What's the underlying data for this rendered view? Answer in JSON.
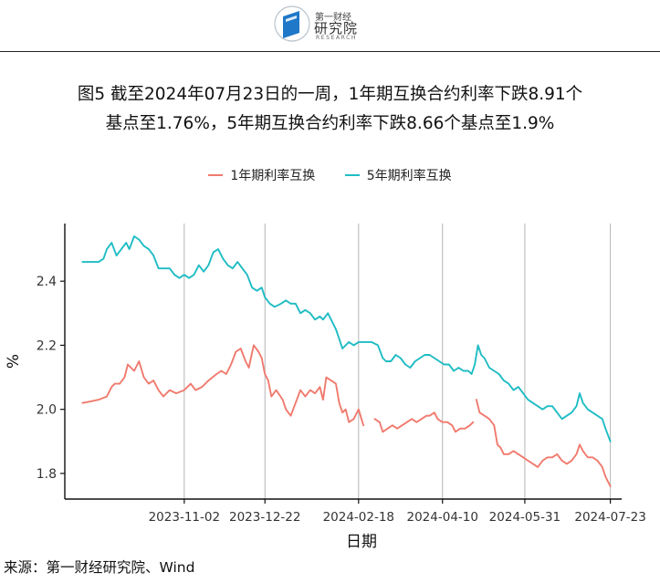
{
  "logo": {
    "top_text": "第一财经",
    "main_text": "研究院",
    "sub_text": "RESEARCH",
    "brand_color": "#1f78c8"
  },
  "title": {
    "line1": "图5  截至2024年07月23日的一周，1年期互换合约利率下跌8.91个",
    "line2": "基点至1.76%，5年期互换合约利率下跌8.66个基点至1.9%"
  },
  "source": "来源：第一财经研究院、Wind",
  "chart_data": {
    "type": "line",
    "xlabel": "日期",
    "ylabel": "%",
    "x_ticks": [
      "2023-11-02",
      "2023-12-22",
      "2024-02-18",
      "2024-04-10",
      "2024-05-31",
      "2024-07-23"
    ],
    "y_ticks": [
      1.8,
      2.0,
      2.2,
      2.4
    ],
    "ylim": [
      1.72,
      2.58
    ],
    "xlim": [
      "2023-08-20",
      "2024-07-30"
    ],
    "grid": "vertical lines at x ticks",
    "legend_position": "top-center",
    "series": [
      {
        "name": "1年期利率互换",
        "color": "#f07a6e",
        "segments": [
          [
            [
              "2023-08-31",
              2.02
            ],
            [
              "2023-09-05",
              2.025
            ],
            [
              "2023-09-10",
              2.03
            ],
            [
              "2023-09-15",
              2.04
            ],
            [
              "2023-09-18",
              2.07
            ],
            [
              "2023-09-20",
              2.08
            ],
            [
              "2023-09-23",
              2.08
            ],
            [
              "2023-09-26",
              2.1
            ],
            [
              "2023-09-28",
              2.14
            ],
            [
              "2023-10-02",
              2.12
            ],
            [
              "2023-10-05",
              2.15
            ],
            [
              "2023-10-08",
              2.1
            ],
            [
              "2023-10-11",
              2.08
            ],
            [
              "2023-10-14",
              2.09
            ],
            [
              "2023-10-17",
              2.06
            ],
            [
              "2023-10-20",
              2.04
            ],
            [
              "2023-10-24",
              2.06
            ],
            [
              "2023-10-28",
              2.05
            ],
            [
              "2023-11-02",
              2.06
            ],
            [
              "2023-11-06",
              2.08
            ],
            [
              "2023-11-09",
              2.06
            ],
            [
              "2023-11-13",
              2.07
            ],
            [
              "2023-11-17",
              2.09
            ],
            [
              "2023-11-22",
              2.11
            ],
            [
              "2023-11-25",
              2.12
            ],
            [
              "2023-11-28",
              2.11
            ],
            [
              "2023-12-01",
              2.14
            ],
            [
              "2023-12-04",
              2.18
            ],
            [
              "2023-12-07",
              2.19
            ],
            [
              "2023-12-10",
              2.15
            ],
            [
              "2023-12-12",
              2.13
            ],
            [
              "2023-12-15",
              2.2
            ],
            [
              "2023-12-18",
              2.18
            ],
            [
              "2023-12-20",
              2.16
            ],
            [
              "2023-12-22",
              2.11
            ],
            [
              "2023-12-24",
              2.09
            ],
            [
              "2023-12-26",
              2.04
            ],
            [
              "2023-12-29",
              2.06
            ],
            [
              "2024-01-02",
              2.03
            ],
            [
              "2024-01-04",
              2.0
            ],
            [
              "2024-01-07",
              1.98
            ],
            [
              "2024-01-10",
              2.02
            ],
            [
              "2024-01-13",
              2.06
            ],
            [
              "2024-01-16",
              2.04
            ],
            [
              "2024-01-19",
              2.06
            ],
            [
              "2024-01-22",
              2.05
            ],
            [
              "2024-01-25",
              2.07
            ],
            [
              "2024-01-27",
              2.03
            ],
            [
              "2024-01-29",
              2.1
            ],
            [
              "2024-02-01",
              2.09
            ],
            [
              "2024-02-04",
              2.08
            ],
            [
              "2024-02-06",
              2.02
            ],
            [
              "2024-02-08",
              1.99
            ],
            [
              "2024-02-10",
              2.0
            ],
            [
              "2024-02-12",
              1.96
            ],
            [
              "2024-02-15",
              1.97
            ],
            [
              "2024-02-18",
              2.0
            ],
            [
              "2024-02-21",
              1.95
            ]
          ],
          [
            [
              "2024-02-28",
              1.97
            ],
            [
              "2024-03-02",
              1.96
            ],
            [
              "2024-03-04",
              1.93
            ],
            [
              "2024-03-07",
              1.94
            ],
            [
              "2024-03-10",
              1.95
            ],
            [
              "2024-03-13",
              1.94
            ],
            [
              "2024-03-16",
              1.95
            ],
            [
              "2024-03-19",
              1.96
            ],
            [
              "2024-03-22",
              1.97
            ],
            [
              "2024-03-25",
              1.96
            ],
            [
              "2024-03-28",
              1.97
            ],
            [
              "2024-03-31",
              1.98
            ],
            [
              "2024-04-02",
              1.98
            ],
            [
              "2024-04-05",
              1.99
            ],
            [
              "2024-04-07",
              1.97
            ],
            [
              "2024-04-10",
              1.96
            ],
            [
              "2024-04-13",
              1.96
            ],
            [
              "2024-04-16",
              1.95
            ],
            [
              "2024-04-18",
              1.93
            ],
            [
              "2024-04-21",
              1.94
            ],
            [
              "2024-04-24",
              1.94
            ],
            [
              "2024-04-27",
              1.95
            ],
            [
              "2024-04-29",
              1.96
            ]
          ],
          [
            [
              "2024-05-01",
              2.03
            ],
            [
              "2024-05-03",
              1.99
            ],
            [
              "2024-05-06",
              1.98
            ],
            [
              "2024-05-09",
              1.97
            ],
            [
              "2024-05-12",
              1.95
            ],
            [
              "2024-05-14",
              1.89
            ],
            [
              "2024-05-16",
              1.88
            ],
            [
              "2024-05-18",
              1.86
            ],
            [
              "2024-05-21",
              1.86
            ],
            [
              "2024-05-24",
              1.87
            ],
            [
              "2024-05-27",
              1.86
            ],
            [
              "2024-05-30",
              1.85
            ],
            [
              "2024-06-02",
              1.84
            ],
            [
              "2024-06-05",
              1.83
            ],
            [
              "2024-06-08",
              1.82
            ],
            [
              "2024-06-11",
              1.84
            ],
            [
              "2024-06-14",
              1.85
            ],
            [
              "2024-06-17",
              1.85
            ],
            [
              "2024-06-20",
              1.86
            ],
            [
              "2024-06-23",
              1.84
            ],
            [
              "2024-06-26",
              1.83
            ],
            [
              "2024-06-29",
              1.84
            ],
            [
              "2024-07-02",
              1.86
            ],
            [
              "2024-07-04",
              1.89
            ],
            [
              "2024-07-06",
              1.87
            ],
            [
              "2024-07-09",
              1.85
            ],
            [
              "2024-07-12",
              1.85
            ],
            [
              "2024-07-15",
              1.84
            ],
            [
              "2024-07-18",
              1.82
            ],
            [
              "2024-07-20",
              1.79
            ],
            [
              "2024-07-23",
              1.76
            ]
          ]
        ]
      },
      {
        "name": "5年期利率互换",
        "color": "#1fbcc4",
        "segments": [
          [
            [
              "2023-08-31",
              2.46
            ],
            [
              "2023-09-05",
              2.46
            ],
            [
              "2023-09-10",
              2.46
            ],
            [
              "2023-09-13",
              2.47
            ],
            [
              "2023-09-15",
              2.5
            ],
            [
              "2023-09-18",
              2.52
            ],
            [
              "2023-09-21",
              2.48
            ],
            [
              "2023-09-24",
              2.5
            ],
            [
              "2023-09-27",
              2.52
            ],
            [
              "2023-09-29",
              2.5
            ],
            [
              "2023-10-02",
              2.54
            ],
            [
              "2023-10-05",
              2.53
            ],
            [
              "2023-10-08",
              2.51
            ],
            [
              "2023-10-11",
              2.5
            ],
            [
              "2023-10-14",
              2.48
            ],
            [
              "2023-10-17",
              2.44
            ],
            [
              "2023-10-20",
              2.44
            ],
            [
              "2023-10-24",
              2.44
            ],
            [
              "2023-10-27",
              2.42
            ],
            [
              "2023-10-30",
              2.41
            ],
            [
              "2023-11-02",
              2.42
            ],
            [
              "2023-11-05",
              2.41
            ],
            [
              "2023-11-08",
              2.42
            ],
            [
              "2023-11-11",
              2.45
            ],
            [
              "2023-11-14",
              2.43
            ],
            [
              "2023-11-17",
              2.45
            ],
            [
              "2023-11-20",
              2.49
            ],
            [
              "2023-11-23",
              2.5
            ],
            [
              "2023-11-26",
              2.47
            ],
            [
              "2023-11-29",
              2.45
            ],
            [
              "2023-12-02",
              2.44
            ],
            [
              "2023-12-05",
              2.46
            ],
            [
              "2023-12-08",
              2.44
            ],
            [
              "2023-12-11",
              2.42
            ],
            [
              "2023-12-14",
              2.38
            ],
            [
              "2023-12-17",
              2.37
            ],
            [
              "2023-12-20",
              2.38
            ],
            [
              "2023-12-22",
              2.35
            ],
            [
              "2023-12-25",
              2.33
            ],
            [
              "2023-12-28",
              2.32
            ],
            [
              "2024-01-01",
              2.33
            ],
            [
              "2024-01-04",
              2.34
            ],
            [
              "2024-01-07",
              2.33
            ],
            [
              "2024-01-10",
              2.33
            ],
            [
              "2024-01-13",
              2.3
            ],
            [
              "2024-01-16",
              2.31
            ],
            [
              "2024-01-19",
              2.3
            ],
            [
              "2024-01-22",
              2.28
            ],
            [
              "2024-01-25",
              2.29
            ],
            [
              "2024-01-27",
              2.28
            ],
            [
              "2024-01-30",
              2.3
            ],
            [
              "2024-02-02",
              2.27
            ],
            [
              "2024-02-04",
              2.25
            ],
            [
              "2024-02-06",
              2.22
            ],
            [
              "2024-02-08",
              2.19
            ],
            [
              "2024-02-10",
              2.2
            ],
            [
              "2024-02-12",
              2.21
            ],
            [
              "2024-02-15",
              2.2
            ],
            [
              "2024-02-18",
              2.21
            ],
            [
              "2024-02-22",
              2.21
            ],
            [
              "2024-02-26",
              2.21
            ],
            [
              "2024-03-01",
              2.2
            ],
            [
              "2024-03-04",
              2.16
            ],
            [
              "2024-03-06",
              2.15
            ],
            [
              "2024-03-09",
              2.15
            ],
            [
              "2024-03-12",
              2.17
            ],
            [
              "2024-03-15",
              2.16
            ],
            [
              "2024-03-18",
              2.14
            ],
            [
              "2024-03-21",
              2.13
            ],
            [
              "2024-03-24",
              2.15
            ],
            [
              "2024-03-27",
              2.16
            ],
            [
              "2024-03-30",
              2.17
            ],
            [
              "2024-04-02",
              2.17
            ],
            [
              "2024-04-05",
              2.16
            ],
            [
              "2024-04-08",
              2.15
            ],
            [
              "2024-04-11",
              2.14
            ],
            [
              "2024-04-14",
              2.14
            ],
            [
              "2024-04-17",
              2.12
            ],
            [
              "2024-04-20",
              2.13
            ],
            [
              "2024-04-23",
              2.12
            ],
            [
              "2024-04-26",
              2.12
            ],
            [
              "2024-04-28",
              2.11
            ],
            [
              "2024-04-30",
              2.14
            ],
            [
              "2024-05-02",
              2.2
            ],
            [
              "2024-05-04",
              2.17
            ],
            [
              "2024-05-06",
              2.16
            ],
            [
              "2024-05-09",
              2.13
            ],
            [
              "2024-05-12",
              2.12
            ],
            [
              "2024-05-15",
              2.11
            ],
            [
              "2024-05-18",
              2.09
            ],
            [
              "2024-05-21",
              2.08
            ],
            [
              "2024-05-24",
              2.06
            ],
            [
              "2024-05-27",
              2.07
            ],
            [
              "2024-05-30",
              2.05
            ],
            [
              "2024-06-02",
              2.03
            ],
            [
              "2024-06-05",
              2.02
            ],
            [
              "2024-06-08",
              2.01
            ],
            [
              "2024-06-11",
              2.0
            ],
            [
              "2024-06-14",
              2.01
            ],
            [
              "2024-06-17",
              2.01
            ],
            [
              "2024-06-20",
              1.99
            ],
            [
              "2024-06-23",
              1.97
            ],
            [
              "2024-06-26",
              1.98
            ],
            [
              "2024-06-29",
              1.99
            ],
            [
              "2024-07-02",
              2.01
            ],
            [
              "2024-07-04",
              2.05
            ],
            [
              "2024-07-06",
              2.02
            ],
            [
              "2024-07-09",
              2.0
            ],
            [
              "2024-07-12",
              1.99
            ],
            [
              "2024-07-15",
              1.98
            ],
            [
              "2024-07-18",
              1.97
            ],
            [
              "2024-07-20",
              1.94
            ],
            [
              "2024-07-23",
              1.9
            ]
          ]
        ]
      }
    ]
  }
}
